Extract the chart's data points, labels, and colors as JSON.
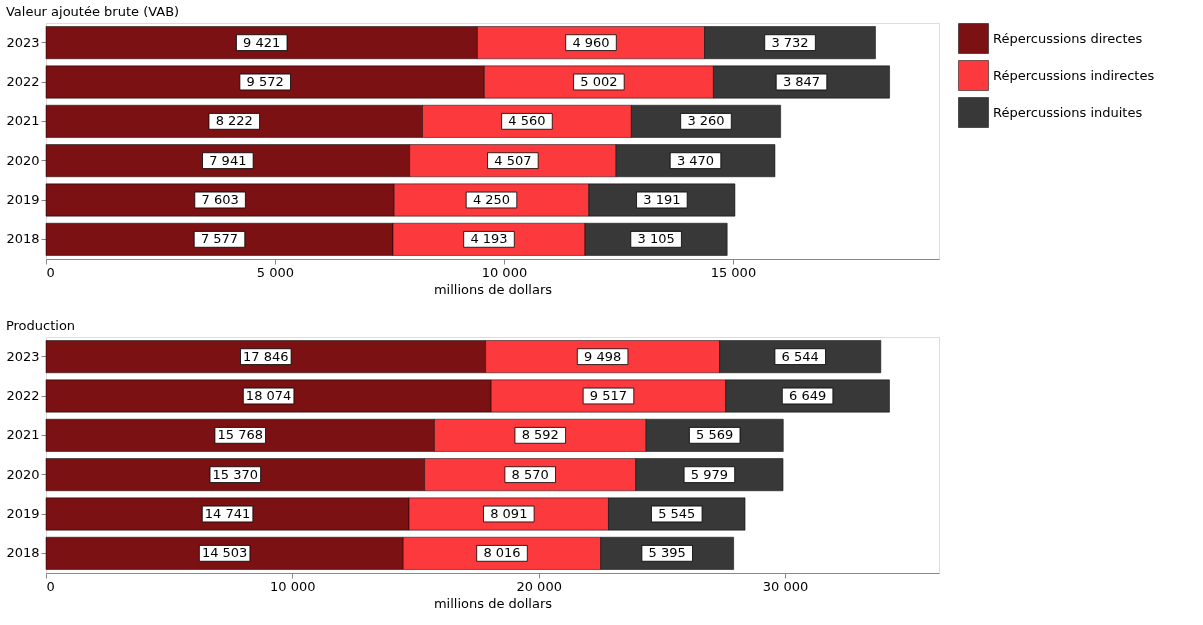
{
  "chart_data": [
    {
      "type": "bar",
      "orientation": "horizontal",
      "stacked": true,
      "title": "Valeur ajoutée brute (VAB)",
      "xlabel": "millions de dollars",
      "categories": [
        "2023",
        "2022",
        "2021",
        "2020",
        "2019",
        "2018"
      ],
      "xlim": [
        0,
        19500
      ],
      "xticks": [
        0,
        5000,
        10000,
        15000
      ],
      "grid": false,
      "legend": "right",
      "data_labels": true,
      "series": [
        {
          "name": "Répercussions directes",
          "color": "#7b1113",
          "values": [
            9421,
            9572,
            8222,
            7941,
            7603,
            7577
          ]
        },
        {
          "name": "Répercussions indirectes",
          "color": "#fc3a3d",
          "values": [
            4960,
            5002,
            4560,
            4507,
            4250,
            4193
          ]
        },
        {
          "name": "Répercussions induites",
          "color": "#383838",
          "values": [
            3732,
            3847,
            3260,
            3470,
            3191,
            3105
          ]
        }
      ]
    },
    {
      "type": "bar",
      "orientation": "horizontal",
      "stacked": true,
      "title": "Production",
      "xlabel": "millions de dollars",
      "categories": [
        "2023",
        "2022",
        "2021",
        "2020",
        "2019",
        "2018"
      ],
      "xlim": [
        0,
        36250
      ],
      "xticks": [
        0,
        10000,
        20000,
        30000
      ],
      "grid": false,
      "legend": "right",
      "data_labels": true,
      "series": [
        {
          "name": "Répercussions directes",
          "color": "#7b1113",
          "values": [
            17846,
            18074,
            15768,
            15370,
            14741,
            14503
          ]
        },
        {
          "name": "Répercussions indirectes",
          "color": "#fc3a3d",
          "values": [
            9498,
            9517,
            8592,
            8570,
            8091,
            8016
          ]
        },
        {
          "name": "Répercussions induites",
          "color": "#383838",
          "values": [
            6544,
            6649,
            5569,
            5979,
            5545,
            5395
          ]
        }
      ]
    }
  ]
}
